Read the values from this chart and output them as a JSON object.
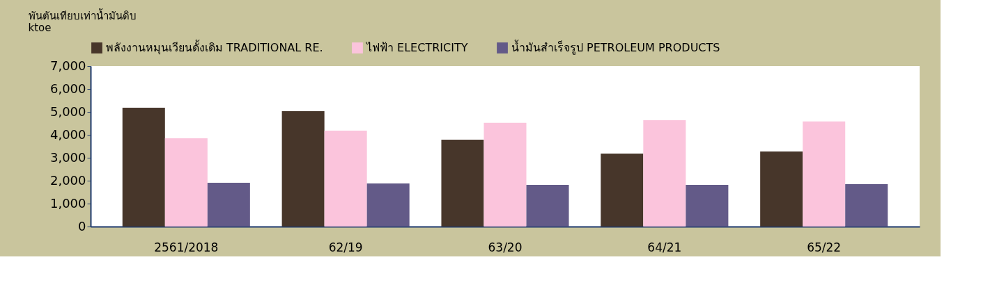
{
  "chart_data": {
    "type": "bar",
    "ylabel": "พันตันเทียบเท่าน้ำมันดิบ\nktoe",
    "categories": [
      "2561/2018",
      "62/19",
      "63/20",
      "64/21",
      "65/22"
    ],
    "series": [
      {
        "name": "พลังงานหมุนเวียนดั้งเดิม TRADITIONAL RE.",
        "color": "#47362a",
        "values": [
          5180,
          5030,
          3790,
          3180,
          3270
        ]
      },
      {
        "name": "ไฟฟ้า ELECTRICITY",
        "color": "#fbc4dc",
        "values": [
          3850,
          4180,
          4520,
          4640,
          4580
        ]
      },
      {
        "name": "น้ำมันสำเร็จรูป PETROLEUM PRODUCTS",
        "color": "#635a88",
        "values": [
          1910,
          1880,
          1820,
          1820,
          1850
        ]
      }
    ],
    "ylim": [
      0,
      7000
    ],
    "yticks": [
      0,
      {
        "value": 1000,
        "label": "1,000"
      },
      {
        "value": 2000,
        "label": "2,000"
      },
      {
        "value": 3000,
        "label": "3,000"
      },
      {
        "value": 4000,
        "label": "4,000"
      },
      {
        "value": 5000,
        "label": "5,000"
      },
      {
        "value": 6000,
        "label": "6,000"
      },
      {
        "value": 7000,
        "label": "7,000"
      }
    ],
    "grid": false,
    "legend": "top"
  }
}
